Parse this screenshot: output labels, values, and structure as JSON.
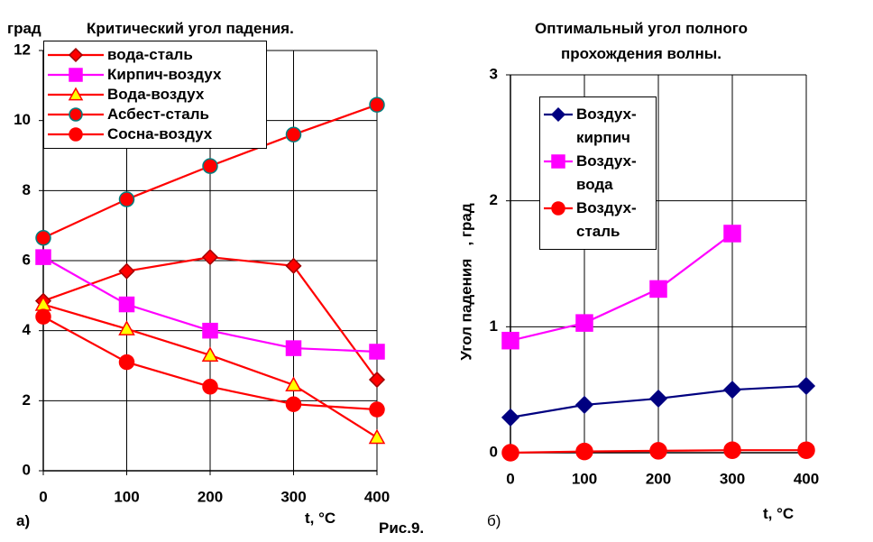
{
  "caption": "Рис.9.",
  "chart_data": [
    {
      "type": "line",
      "title": "Критический угол падения.",
      "ylabel": "град",
      "xlabel": "t, °C",
      "panel_label": "а)",
      "x": [
        0,
        100,
        200,
        300,
        400
      ],
      "xlim": [
        0,
        400
      ],
      "xticks": [
        0,
        100,
        200,
        300,
        400
      ],
      "ylim": [
        0,
        12
      ],
      "yticks": [
        0,
        2,
        4,
        6,
        8,
        10,
        12
      ],
      "grid": true,
      "series": [
        {
          "name": "вода-сталь",
          "color": "#ff0000",
          "marker": "diamond",
          "marker_fill": "#ff0000",
          "marker_edge": "#a00000",
          "values": [
            4.85,
            5.7,
            6.1,
            5.85,
            2.6
          ]
        },
        {
          "name": "Кирпич-воздух",
          "color": "#ff00ff",
          "marker": "square",
          "marker_fill": "#ff00ff",
          "marker_edge": "#ff00ff",
          "values": [
            6.1,
            4.75,
            4.0,
            3.5,
            3.4
          ]
        },
        {
          "name": "Вода-воздух",
          "color": "#ff0000",
          "marker": "triangle",
          "marker_fill": "#ffff00",
          "marker_edge": "#ff0000",
          "values": [
            4.75,
            4.05,
            3.3,
            2.45,
            0.95
          ]
        },
        {
          "name": "Асбест-сталь",
          "color": "#ff0000",
          "marker": "circle",
          "marker_fill": "#ff0000",
          "marker_edge": "#008080",
          "values": [
            6.65,
            7.75,
            8.7,
            9.6,
            10.45
          ]
        },
        {
          "name": "Сосна-воздух",
          "color": "#ff0000",
          "marker": "circle",
          "marker_fill": "#ff0000",
          "marker_edge": "#ff0000",
          "values": [
            4.4,
            3.1,
            2.4,
            1.9,
            1.75
          ]
        }
      ]
    },
    {
      "type": "line",
      "title": "Оптимальный угол полного прохождения волны.",
      "ylabel": "Угол падения   , град",
      "xlabel": "t, °C",
      "panel_label": "б)",
      "x": [
        0,
        100,
        200,
        300,
        400
      ],
      "xlim": [
        0,
        400
      ],
      "xticks": [
        0,
        100,
        200,
        300,
        400
      ],
      "ylim": [
        0,
        3
      ],
      "yticks": [
        0,
        1,
        2,
        3
      ],
      "grid": true,
      "series": [
        {
          "name": "Воздух-кирпич",
          "color": "#000080",
          "marker": "diamond",
          "marker_fill": "#000080",
          "marker_edge": "#000080",
          "values": [
            0.28,
            0.38,
            0.43,
            0.5,
            0.53
          ]
        },
        {
          "name": "Воздух-вода",
          "color": "#ff00ff",
          "marker": "square",
          "marker_fill": "#ff00ff",
          "marker_edge": "#ff00ff",
          "values": [
            0.89,
            1.03,
            1.3,
            1.74,
            null
          ]
        },
        {
          "name": "Воздух-сталь",
          "color": "#ff0000",
          "marker": "circle",
          "marker_fill": "#ff0000",
          "marker_edge": "#ff0000",
          "values": [
            0.0,
            0.01,
            0.015,
            0.02,
            0.02
          ]
        }
      ]
    }
  ]
}
